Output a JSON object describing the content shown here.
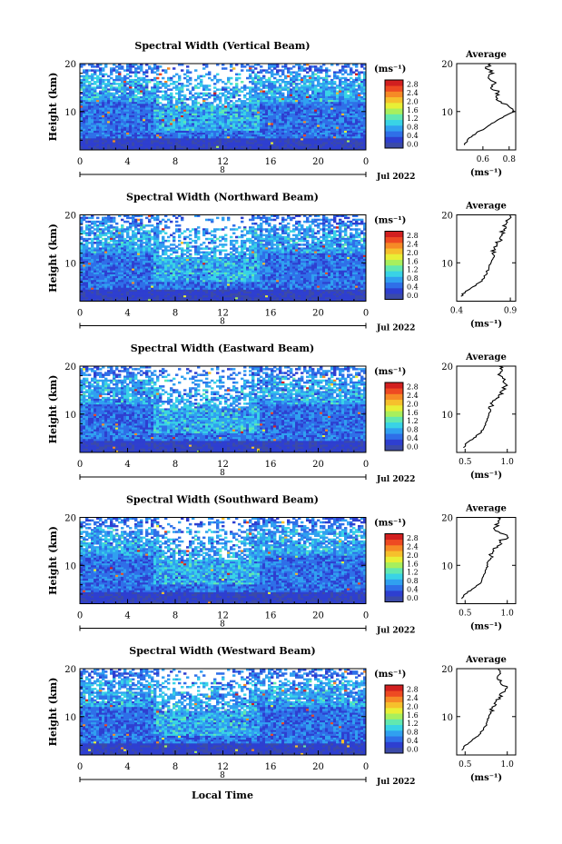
{
  "figure": {
    "xlabel": "Local Time",
    "date_label": "Jul 2022",
    "day_label": "8"
  },
  "colorbar": {
    "unit_label": "(ms⁻¹)",
    "ticks": [
      "0.0",
      "0.4",
      "0.8",
      "1.2",
      "1.6",
      "2.0",
      "2.4",
      "2.8"
    ],
    "colors": [
      "#3b4aa8",
      "#2e3fd0",
      "#2f6fe8",
      "#30a0f0",
      "#39d3e6",
      "#62e8b0",
      "#a8ef5d",
      "#e8ef36",
      "#f6c02c",
      "#f68a26",
      "#ee4a22",
      "#d21f1f"
    ]
  },
  "chart_data": [
    {
      "type": "heatmap",
      "title": "Spectral Width (Vertical Beam)",
      "ylabel": "Height (km)",
      "x_ticks": [
        "0",
        "4",
        "8",
        "12",
        "16",
        "20",
        "0"
      ],
      "y_ticks": [
        "10",
        "20"
      ],
      "xlim": [
        0,
        24
      ],
      "ylim": [
        2,
        20
      ],
      "value_range": [
        0.0,
        3.0
      ],
      "profile": {
        "title": "Average",
        "ylabel": "Height (km)",
        "xlabel": "(ms⁻¹)",
        "x_ticks": [
          "0.6",
          "0.8"
        ],
        "xlim": [
          0.4,
          0.85
        ],
        "y_ticks": [
          "10",
          "20"
        ],
        "ylim": [
          2,
          20
        ],
        "height": [
          3,
          4,
          5,
          6,
          7,
          8,
          9,
          10,
          11,
          12,
          13,
          14,
          15,
          16,
          17,
          18,
          19,
          20
        ],
        "value": [
          0.46,
          0.48,
          0.52,
          0.58,
          0.64,
          0.7,
          0.76,
          0.84,
          0.8,
          0.74,
          0.7,
          0.72,
          0.66,
          0.7,
          0.64,
          0.68,
          0.62,
          0.66
        ]
      }
    },
    {
      "type": "heatmap",
      "title": "Spectral Width (Northward Beam)",
      "ylabel": "Height (km)",
      "x_ticks": [
        "0",
        "4",
        "8",
        "12",
        "16",
        "20",
        "0"
      ],
      "y_ticks": [
        "10",
        "20"
      ],
      "xlim": [
        0,
        24
      ],
      "ylim": [
        2,
        20
      ],
      "value_range": [
        0.0,
        3.0
      ],
      "profile": {
        "title": "Average",
        "ylabel": "Height (km)",
        "xlabel": "(ms⁻¹)",
        "x_ticks": [
          "0.4",
          "0.9"
        ],
        "xlim": [
          0.4,
          0.95
        ],
        "y_ticks": [
          "10",
          "20"
        ],
        "ylim": [
          2,
          20
        ],
        "height": [
          3,
          4,
          5,
          6,
          7,
          8,
          9,
          10,
          11,
          12,
          13,
          14,
          15,
          16,
          17,
          18,
          19,
          20
        ],
        "value": [
          0.44,
          0.48,
          0.55,
          0.62,
          0.66,
          0.68,
          0.7,
          0.72,
          0.74,
          0.73,
          0.75,
          0.78,
          0.8,
          0.82,
          0.84,
          0.86,
          0.88,
          0.9
        ]
      }
    },
    {
      "type": "heatmap",
      "title": "Spectral Width (Eastward Beam)",
      "ylabel": "Height (km)",
      "x_ticks": [
        "0",
        "4",
        "8",
        "12",
        "16",
        "20",
        "0"
      ],
      "y_ticks": [
        "10",
        "20"
      ],
      "xlim": [
        0,
        24
      ],
      "ylim": [
        2,
        20
      ],
      "value_range": [
        0.0,
        3.0
      ],
      "profile": {
        "title": "Average",
        "ylabel": "Height (km)",
        "xlabel": "(ms⁻¹)",
        "x_ticks": [
          "0.5",
          "1.0"
        ],
        "xlim": [
          0.4,
          1.1
        ],
        "y_ticks": [
          "10",
          "20"
        ],
        "ylim": [
          2,
          20
        ],
        "height": [
          3,
          4,
          5,
          6,
          7,
          8,
          9,
          10,
          11,
          12,
          13,
          14,
          15,
          16,
          17,
          18,
          19,
          20
        ],
        "value": [
          0.48,
          0.52,
          0.6,
          0.68,
          0.72,
          0.74,
          0.76,
          0.78,
          0.8,
          0.82,
          0.86,
          0.9,
          0.95,
          1.0,
          0.96,
          0.92,
          0.94,
          0.9
        ]
      }
    },
    {
      "type": "heatmap",
      "title": "Spectral Width (Southward Beam)",
      "ylabel": "Height (km)",
      "x_ticks": [
        "0",
        "4",
        "8",
        "12",
        "16",
        "20",
        "0"
      ],
      "y_ticks": [
        "10",
        "20"
      ],
      "xlim": [
        0,
        24
      ],
      "ylim": [
        2,
        20
      ],
      "value_range": [
        0.0,
        3.0
      ],
      "profile": {
        "title": "Average",
        "ylabel": "Height (km)",
        "xlabel": "(ms⁻¹)",
        "x_ticks": [
          "0.5",
          "1.0"
        ],
        "xlim": [
          0.4,
          1.1
        ],
        "y_ticks": [
          "10",
          "20"
        ],
        "ylim": [
          2,
          20
        ],
        "height": [
          3,
          4,
          5,
          6,
          7,
          8,
          9,
          10,
          11,
          12,
          13,
          14,
          15,
          16,
          17,
          18,
          19,
          20
        ],
        "value": [
          0.46,
          0.5,
          0.58,
          0.66,
          0.7,
          0.72,
          0.74,
          0.76,
          0.78,
          0.8,
          0.84,
          0.88,
          0.92,
          1.0,
          0.9,
          0.86,
          0.9,
          0.88
        ]
      }
    },
    {
      "type": "heatmap",
      "title": "Spectral Width (Westward Beam)",
      "ylabel": "Height (km)",
      "x_ticks": [
        "0",
        "4",
        "8",
        "12",
        "16",
        "20",
        "0"
      ],
      "y_ticks": [
        "10",
        "20"
      ],
      "xlim": [
        0,
        24
      ],
      "ylim": [
        2,
        20
      ],
      "value_range": [
        0.0,
        3.0
      ],
      "profile": {
        "title": "Average",
        "ylabel": "Height (km)",
        "xlabel": "(ms⁻¹)",
        "x_ticks": [
          "0.5",
          "1.0"
        ],
        "xlim": [
          0.4,
          1.1
        ],
        "y_ticks": [
          "10",
          "20"
        ],
        "ylim": [
          2,
          20
        ],
        "height": [
          3,
          4,
          5,
          6,
          7,
          8,
          9,
          10,
          11,
          12,
          13,
          14,
          15,
          16,
          17,
          18,
          19,
          20
        ],
        "value": [
          0.46,
          0.5,
          0.58,
          0.66,
          0.7,
          0.74,
          0.76,
          0.78,
          0.8,
          0.82,
          0.86,
          0.9,
          0.94,
          1.0,
          0.92,
          0.88,
          0.92,
          0.9
        ]
      }
    }
  ]
}
